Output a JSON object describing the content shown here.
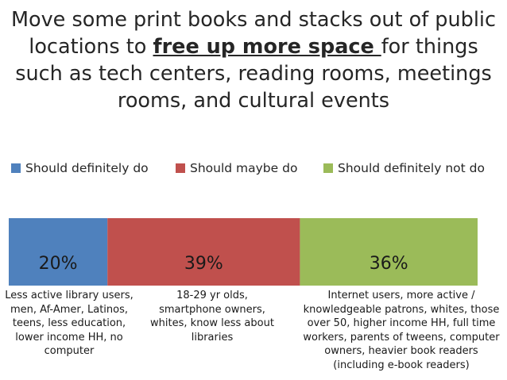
{
  "title": {
    "before": "Move some print books and stacks out of public locations to ",
    "emphasis": "free up more space ",
    "after": "for things such as tech centers, reading rooms, meetings rooms, and cultural events"
  },
  "chart_data": {
    "type": "bar",
    "orientation": "horizontal",
    "stacked": true,
    "unit": "%",
    "categories": [
      ""
    ],
    "series": [
      {
        "name": "Should definitely do",
        "values": [
          20
        ],
        "label": "20%",
        "color": "#4F81BD"
      },
      {
        "name": "Should maybe do",
        "values": [
          39
        ],
        "label": "39%",
        "color": "#C0504D"
      },
      {
        "name": "Should definitely not do",
        "values": [
          36
        ],
        "label": "36%",
        "color": "#9BBB59"
      }
    ],
    "legend_position": "top",
    "grid": false,
    "annotations": [
      "Less active library users, men, Af-Amer, Latinos, teens, less education, lower income HH, no computer",
      "18-29 yr olds, smartphone owners, whites, know less about libraries",
      "Internet users, more active / knowledgeable patrons, whites, those over 50, higher income HH, full time workers, parents of tweens, computer owners, heavier book readers (including e-book readers)"
    ]
  }
}
